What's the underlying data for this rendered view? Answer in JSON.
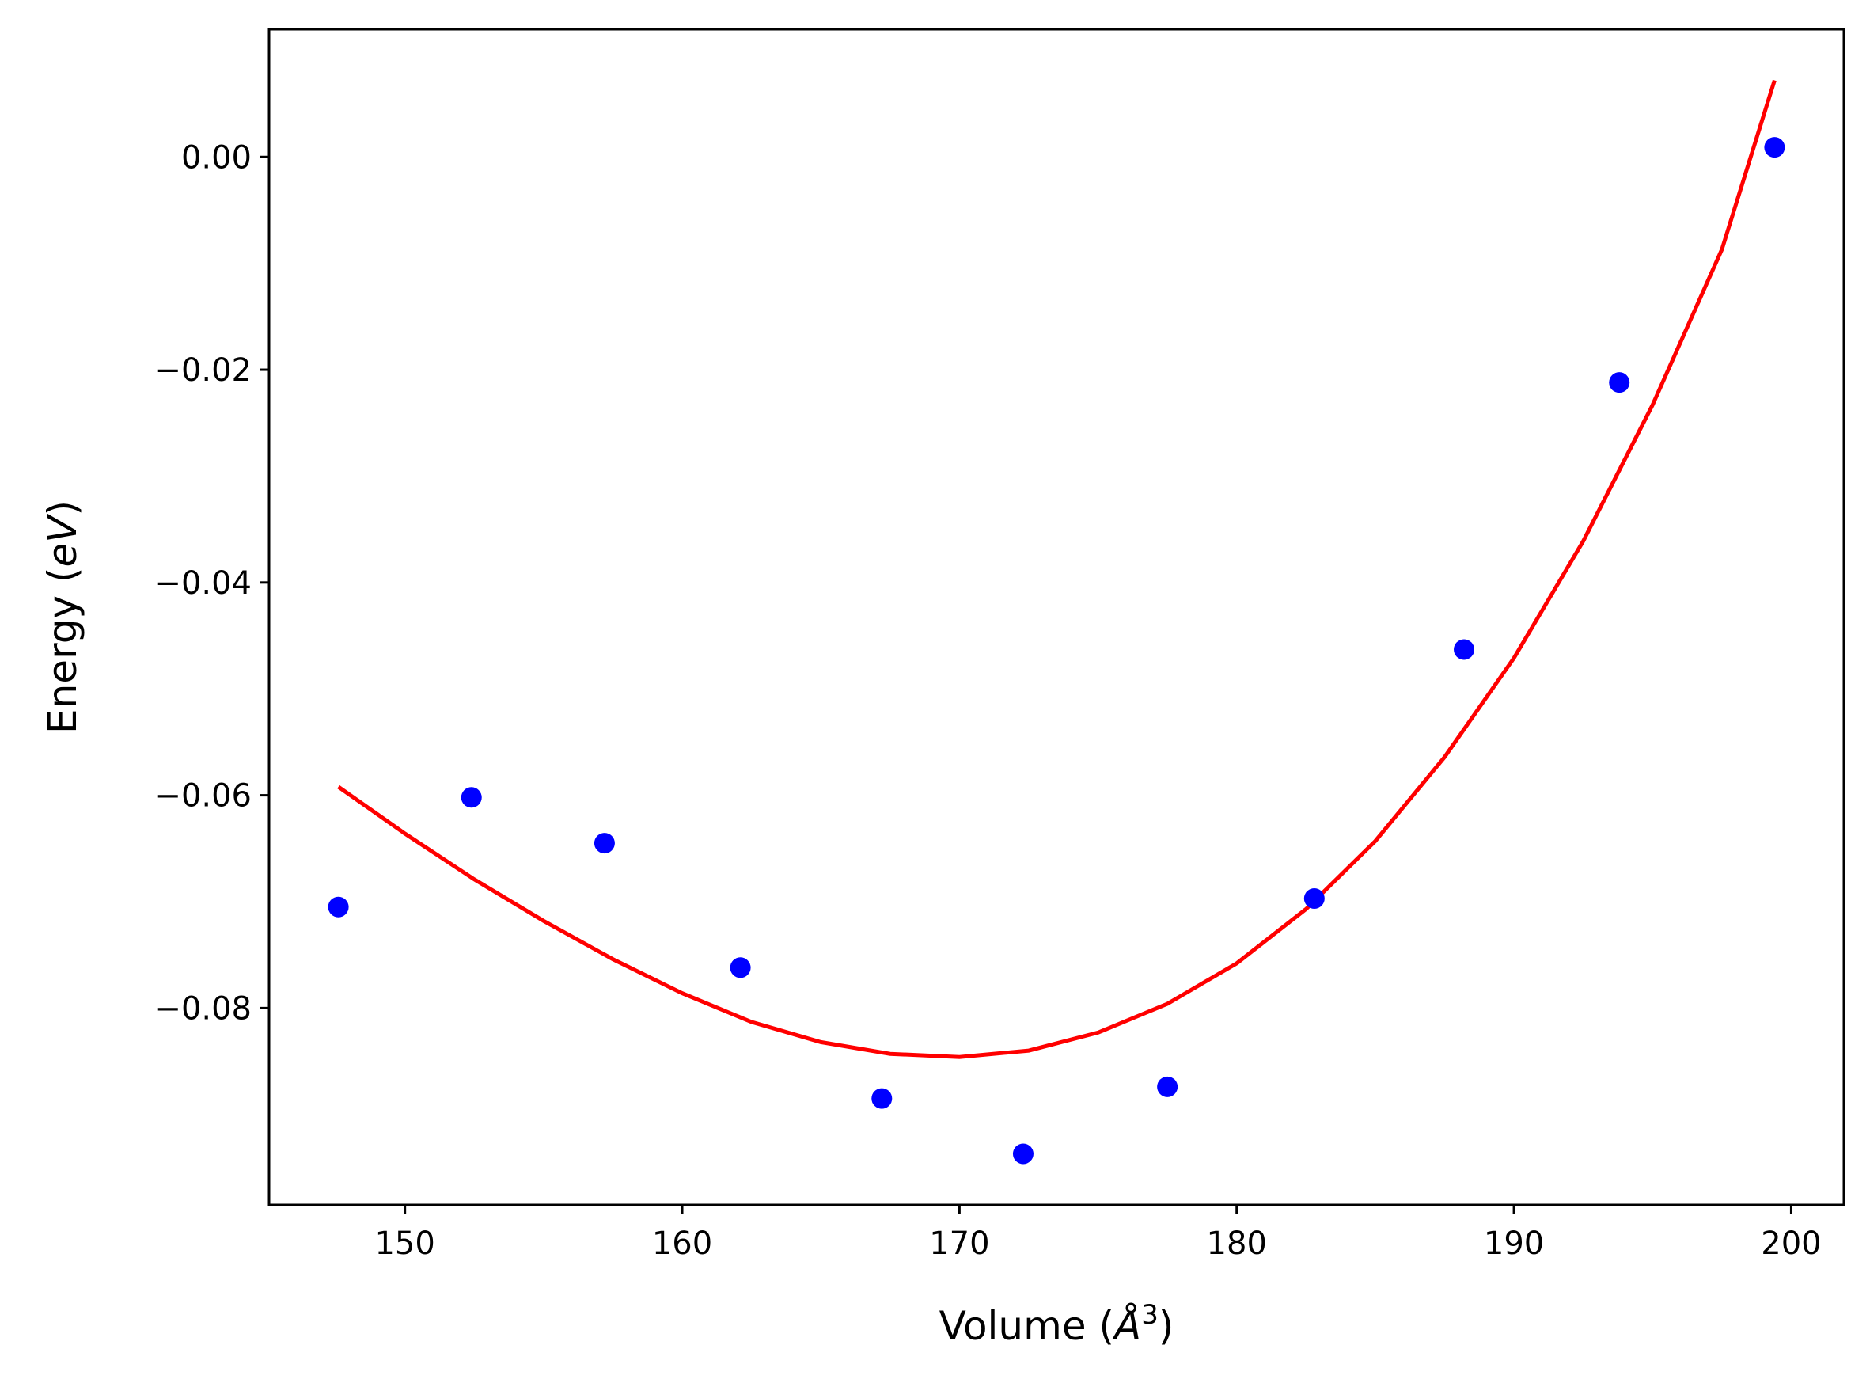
{
  "chart_data": {
    "type": "scatter",
    "xlabel_main": "Volume (",
    "xlabel_unit": "Å",
    "xlabel_exp": "3",
    "xlabel_close": ")",
    "ylabel_main": "Energy (",
    "ylabel_unit": "eV",
    "ylabel_close": ")",
    "xlim": [
      145.1,
      201.9
    ],
    "ylim": [
      -0.0985,
      0.012
    ],
    "xticks": [
      150,
      160,
      170,
      180,
      190,
      200
    ],
    "xtick_labels": [
      "150",
      "160",
      "170",
      "180",
      "190",
      "200"
    ],
    "yticks": [
      0.0,
      -0.02,
      -0.04,
      -0.06,
      -0.08
    ],
    "ytick_labels": [
      "0.00",
      "−0.02",
      "−0.04",
      "−0.06",
      "−0.08"
    ],
    "grid": false,
    "series": [
      {
        "kind": "points",
        "color": "#0000ff",
        "x": [
          147.6,
          152.4,
          157.2,
          162.1,
          167.2,
          172.3,
          177.5,
          182.8,
          188.2,
          193.8,
          199.4
        ],
        "y": [
          -0.0705,
          -0.0602,
          -0.0645,
          -0.0762,
          -0.0885,
          -0.0937,
          -0.0874,
          -0.0697,
          -0.0463,
          -0.0212,
          0.0009
        ]
      },
      {
        "kind": "fit-curve",
        "color": "#ff0000",
        "x": [
          147.6,
          150.0,
          152.5,
          155.0,
          157.5,
          160.0,
          162.5,
          165.0,
          167.5,
          170.0,
          172.5,
          175.0,
          177.5,
          180.0,
          182.5,
          185.0,
          187.5,
          190.0,
          192.5,
          195.0,
          197.5,
          199.4
        ],
        "y": [
          -0.0592,
          -0.0636,
          -0.0679,
          -0.0718,
          -0.0754,
          -0.0786,
          -0.0813,
          -0.0832,
          -0.0843,
          -0.0846,
          -0.084,
          -0.0823,
          -0.0796,
          -0.0758,
          -0.0707,
          -0.0643,
          -0.0564,
          -0.0471,
          -0.0361,
          -0.0233,
          -0.0087,
          0.0072
        ]
      }
    ]
  }
}
